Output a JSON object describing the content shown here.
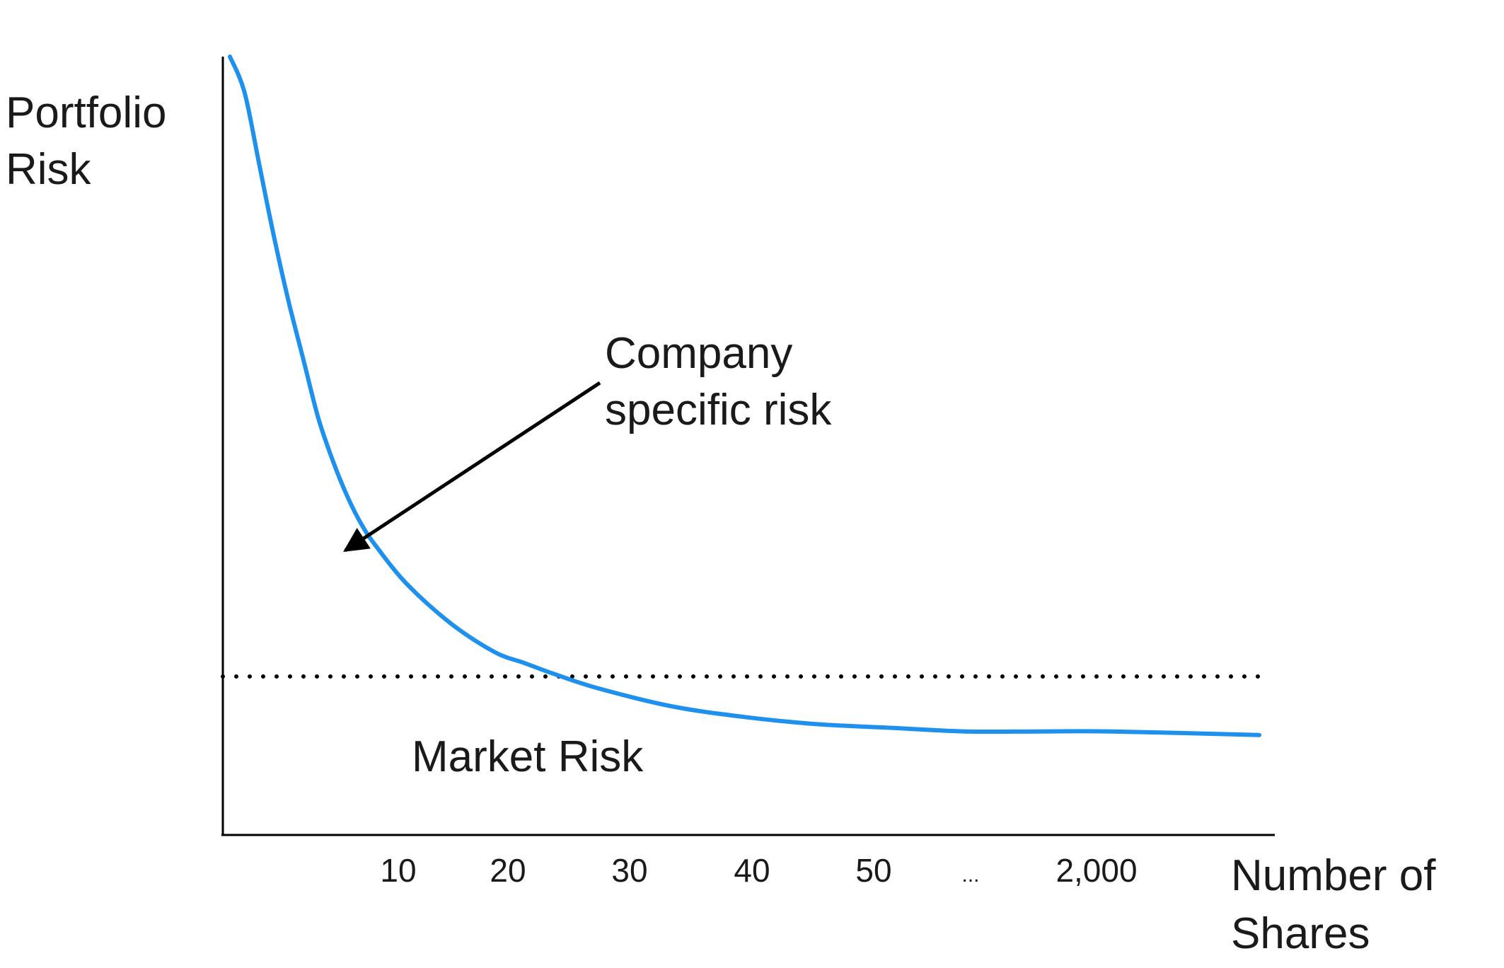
{
  "chart_data": {
    "type": "line",
    "ylabel": [
      "Portfolio",
      "Risk"
    ],
    "xlabel": [
      "Number of",
      "Shares"
    ],
    "tick_labels": [
      "10",
      "20",
      "30",
      "40",
      "50",
      "...",
      "2,000"
    ],
    "series": [
      {
        "color": "#1e90ee",
        "x": [
          0,
          1,
          2,
          3,
          4,
          5,
          6,
          7,
          8,
          9,
          10,
          12,
          15,
          18,
          20,
          22,
          25,
          30,
          35,
          40,
          45,
          50,
          55,
          60,
          70
        ],
        "y": [
          100,
          95,
          85,
          75,
          66,
          58,
          50,
          44,
          39,
          35,
          32,
          27,
          21.5,
          17.5,
          16,
          14.5,
          12.5,
          10,
          8.5,
          7.5,
          7,
          6.5,
          6.5,
          6.5,
          6
        ]
      }
    ],
    "baseline": {
      "label": "Market Risk",
      "style": "dotted",
      "y": 4
    },
    "annotation": {
      "text": [
        "Company",
        "specific risk"
      ],
      "arrow": true
    },
    "grid": false,
    "legend": "none"
  }
}
